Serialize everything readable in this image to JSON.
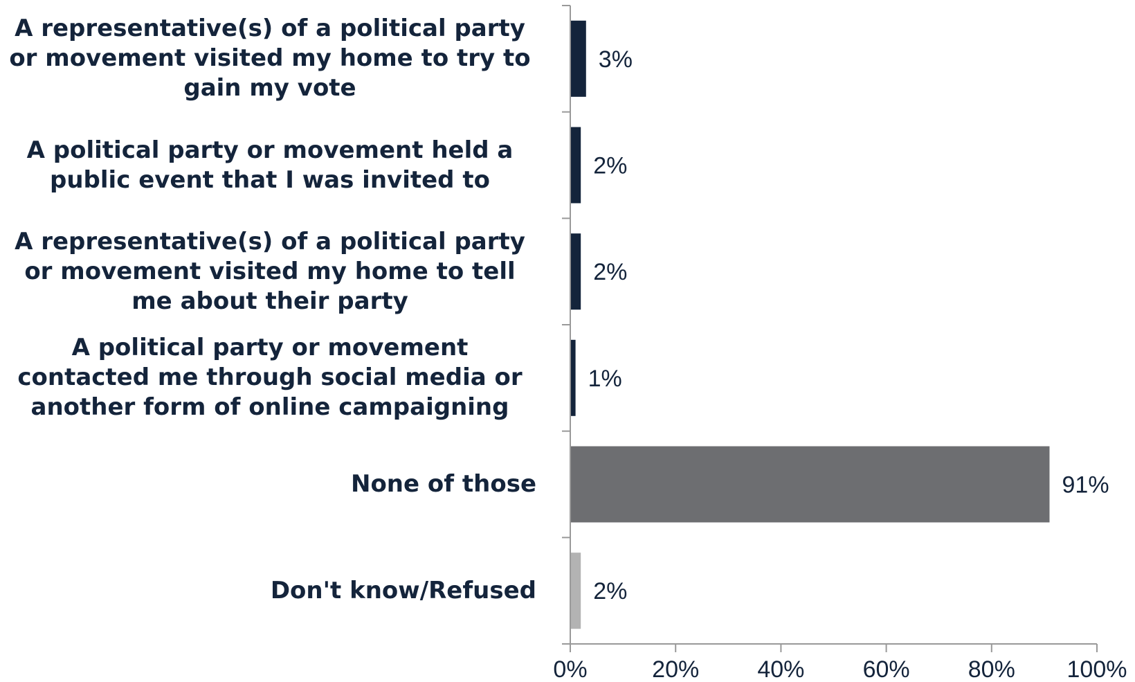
{
  "chart_data": {
    "type": "bar",
    "orientation": "horizontal",
    "categories": [
      "A representative(s) of a political party or movement visited my home to try to gain my vote",
      "A political party or movement held a public event that I was invited to",
      "A representative(s) of a political party or movement visited my home to tell me about their party",
      "A political party or movement contacted me through social media or another form of online campaigning",
      "None of those",
      "Don't know/Refused"
    ],
    "values": [
      3,
      2,
      2,
      1,
      91,
      2
    ],
    "value_labels": [
      "3%",
      "2%",
      "2%",
      "1%",
      "91%",
      "2%"
    ],
    "colors": [
      "#14243b",
      "#14243b",
      "#14243b",
      "#14243b",
      "#6d6e71",
      "#b3b3b3"
    ],
    "xlim": [
      0,
      100
    ],
    "xticks": [
      0,
      20,
      40,
      60,
      80,
      100
    ],
    "xtick_labels": [
      "0%",
      "20%",
      "40%",
      "60%",
      "80%",
      "100%"
    ],
    "title": "",
    "xlabel": "",
    "ylabel": "",
    "grid": false,
    "legend": "none"
  }
}
